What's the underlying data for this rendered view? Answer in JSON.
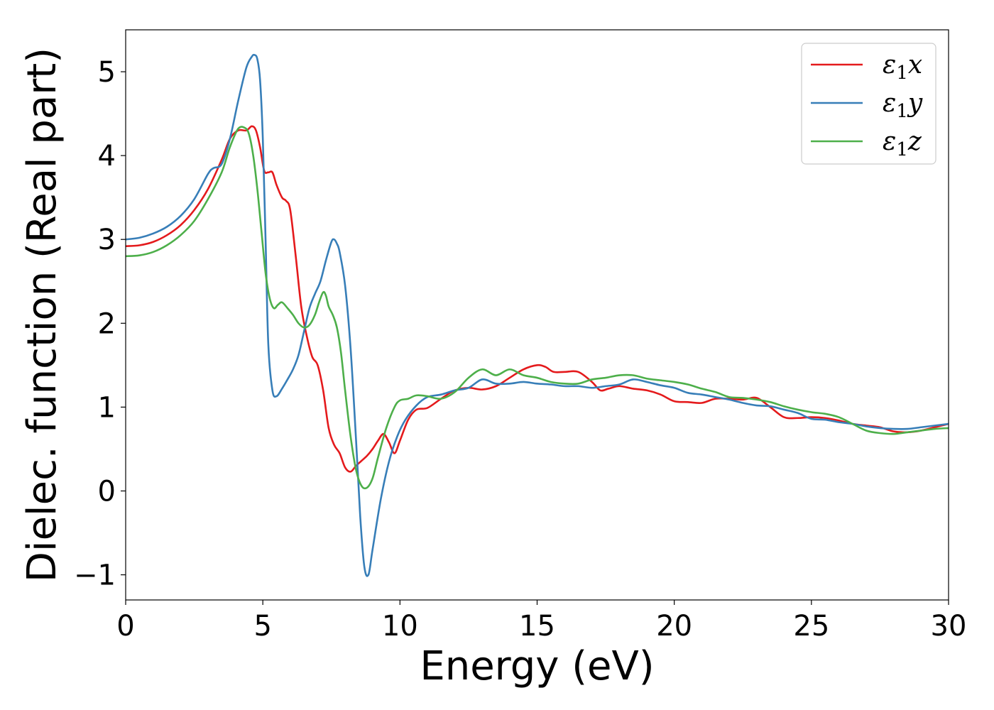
{
  "chart_data": {
    "type": "line",
    "title": "",
    "xlabel": "Energy (eV)",
    "ylabel": "Dielec. function (Real part)",
    "xlim": [
      0,
      30
    ],
    "ylim": [
      -1.3,
      5.5
    ],
    "xticks": [
      0,
      5,
      10,
      15,
      20,
      25,
      30
    ],
    "yticks": [
      -1,
      0,
      1,
      2,
      3,
      4,
      5
    ],
    "xtick_labels": [
      "0",
      "5",
      "10",
      "15",
      "20",
      "25",
      "30"
    ],
    "ytick_labels": [
      "−1",
      "0",
      "1",
      "2",
      "3",
      "4",
      "5"
    ],
    "grid": false,
    "legend_position": "top-right",
    "series": [
      {
        "name": "ε₁x",
        "legend_base": "ε",
        "legend_sub": "1",
        "legend_tail": "x",
        "color": "#e41a1c",
        "x": [
          0,
          0.5,
          1,
          1.5,
          2,
          2.5,
          3,
          3.5,
          3.8,
          4.1,
          4.4,
          4.6,
          4.75,
          4.9,
          5.05,
          5.2,
          5.35,
          5.5,
          5.7,
          5.85,
          6.0,
          6.2,
          6.4,
          6.6,
          6.8,
          7.0,
          7.2,
          7.4,
          7.6,
          7.8,
          8.0,
          8.2,
          8.4,
          8.6,
          8.8,
          9.0,
          9.2,
          9.4,
          9.6,
          9.8,
          10.0,
          10.3,
          10.6,
          11.0,
          11.5,
          12.0,
          12.5,
          13.0,
          13.5,
          14.0,
          14.5,
          15.0,
          15.3,
          15.6,
          16.0,
          16.5,
          17.0,
          17.3,
          17.6,
          18.0,
          18.5,
          19.0,
          19.5,
          20.0,
          20.5,
          21.0,
          21.5,
          22.0,
          22.5,
          23.0,
          23.5,
          24.0,
          24.5,
          25.0,
          25.5,
          26.0,
          26.5,
          27.0,
          27.5,
          28.0,
          28.5,
          29.0,
          29.5,
          30.0
        ],
        "y": [
          2.92,
          2.93,
          2.97,
          3.05,
          3.17,
          3.35,
          3.6,
          3.95,
          4.2,
          4.3,
          4.3,
          4.35,
          4.3,
          4.1,
          3.82,
          3.8,
          3.8,
          3.65,
          3.5,
          3.46,
          3.35,
          2.8,
          2.2,
          1.85,
          1.6,
          1.5,
          1.2,
          0.75,
          0.55,
          0.45,
          0.28,
          0.23,
          0.3,
          0.36,
          0.42,
          0.5,
          0.6,
          0.68,
          0.58,
          0.45,
          0.6,
          0.85,
          0.97,
          0.99,
          1.1,
          1.2,
          1.23,
          1.21,
          1.25,
          1.35,
          1.45,
          1.5,
          1.48,
          1.42,
          1.42,
          1.42,
          1.3,
          1.2,
          1.22,
          1.25,
          1.22,
          1.2,
          1.15,
          1.07,
          1.06,
          1.05,
          1.1,
          1.1,
          1.09,
          1.11,
          1.0,
          0.88,
          0.87,
          0.88,
          0.87,
          0.84,
          0.8,
          0.78,
          0.76,
          0.71,
          0.7,
          0.72,
          0.76,
          0.8
        ]
      },
      {
        "name": "ε₁y",
        "legend_base": "ε",
        "legend_sub": "1",
        "legend_tail": "y",
        "color": "#377eb8",
        "x": [
          0,
          0.5,
          1,
          1.5,
          2,
          2.5,
          3,
          3.2,
          3.5,
          3.8,
          4.1,
          4.4,
          4.6,
          4.7,
          4.8,
          4.9,
          5.0,
          5.1,
          5.2,
          5.35,
          5.5,
          5.7,
          5.9,
          6.1,
          6.3,
          6.5,
          6.7,
          6.9,
          7.1,
          7.3,
          7.5,
          7.6,
          7.7,
          7.8,
          8.0,
          8.2,
          8.4,
          8.55,
          8.7,
          8.85,
          9.0,
          9.3,
          9.6,
          9.9,
          10.2,
          10.6,
          11.0,
          11.5,
          12.0,
          12.5,
          13.0,
          13.5,
          14.0,
          14.5,
          15.0,
          15.5,
          16.0,
          16.5,
          17.0,
          17.5,
          18.0,
          18.5,
          19.0,
          19.5,
          20.0,
          20.5,
          21.0,
          21.5,
          22.0,
          22.5,
          23.0,
          23.5,
          24.0,
          24.5,
          25.0,
          25.5,
          26.0,
          26.5,
          27.0,
          27.5,
          28.0,
          28.5,
          29.0,
          29.5,
          30.0
        ],
        "y": [
          3.0,
          3.02,
          3.07,
          3.15,
          3.28,
          3.48,
          3.78,
          3.85,
          3.9,
          4.2,
          4.65,
          5.05,
          5.18,
          5.2,
          5.15,
          4.9,
          4.2,
          3.0,
          1.75,
          1.2,
          1.13,
          1.22,
          1.33,
          1.45,
          1.62,
          1.9,
          2.18,
          2.35,
          2.5,
          2.75,
          2.97,
          3.0,
          2.95,
          2.85,
          2.45,
          1.7,
          0.6,
          -0.3,
          -0.9,
          -1.0,
          -0.7,
          -0.1,
          0.35,
          0.65,
          0.85,
          1.02,
          1.12,
          1.15,
          1.2,
          1.23,
          1.33,
          1.28,
          1.28,
          1.3,
          1.28,
          1.27,
          1.25,
          1.25,
          1.23,
          1.25,
          1.27,
          1.33,
          1.3,
          1.26,
          1.23,
          1.17,
          1.15,
          1.12,
          1.09,
          1.05,
          1.02,
          1.01,
          0.97,
          0.93,
          0.86,
          0.85,
          0.82,
          0.8,
          0.77,
          0.75,
          0.74,
          0.74,
          0.76,
          0.78,
          0.8
        ]
      },
      {
        "name": "ε₁z",
        "legend_base": "ε",
        "legend_sub": "1",
        "legend_tail": "z",
        "color": "#4daf4a",
        "x": [
          0,
          0.5,
          1,
          1.5,
          2,
          2.5,
          3,
          3.5,
          3.8,
          4.1,
          4.35,
          4.5,
          4.65,
          4.8,
          4.95,
          5.1,
          5.25,
          5.4,
          5.55,
          5.7,
          5.9,
          6.1,
          6.3,
          6.5,
          6.7,
          6.9,
          7.05,
          7.2,
          7.3,
          7.4,
          7.55,
          7.7,
          7.85,
          8.0,
          8.2,
          8.4,
          8.6,
          8.8,
          9.0,
          9.2,
          9.5,
          9.8,
          10.0,
          10.3,
          10.6,
          11.0,
          11.5,
          12.0,
          12.5,
          13.0,
          13.5,
          14.0,
          14.5,
          15.0,
          15.5,
          16.0,
          16.5,
          17.0,
          17.5,
          18.0,
          18.5,
          19.0,
          19.5,
          20.0,
          20.5,
          21.0,
          21.5,
          22.0,
          22.5,
          23.0,
          23.5,
          24.0,
          24.5,
          25.0,
          25.5,
          26.0,
          26.5,
          27.0,
          27.5,
          28.0,
          28.5,
          29.0,
          29.5,
          30.0
        ],
        "y": [
          2.8,
          2.81,
          2.85,
          2.93,
          3.05,
          3.22,
          3.48,
          3.8,
          4.1,
          4.32,
          4.33,
          4.25,
          4.0,
          3.6,
          3.1,
          2.6,
          2.3,
          2.18,
          2.22,
          2.25,
          2.18,
          2.1,
          2.0,
          1.95,
          1.98,
          2.1,
          2.25,
          2.37,
          2.33,
          2.2,
          2.1,
          1.95,
          1.65,
          1.2,
          0.65,
          0.25,
          0.06,
          0.04,
          0.15,
          0.4,
          0.75,
          1.0,
          1.08,
          1.1,
          1.14,
          1.13,
          1.1,
          1.18,
          1.35,
          1.45,
          1.38,
          1.45,
          1.38,
          1.35,
          1.3,
          1.28,
          1.28,
          1.33,
          1.35,
          1.38,
          1.38,
          1.34,
          1.32,
          1.3,
          1.27,
          1.22,
          1.18,
          1.12,
          1.11,
          1.09,
          1.06,
          1.01,
          0.97,
          0.94,
          0.92,
          0.88,
          0.8,
          0.72,
          0.69,
          0.68,
          0.7,
          0.72,
          0.74,
          0.75
        ]
      }
    ]
  }
}
